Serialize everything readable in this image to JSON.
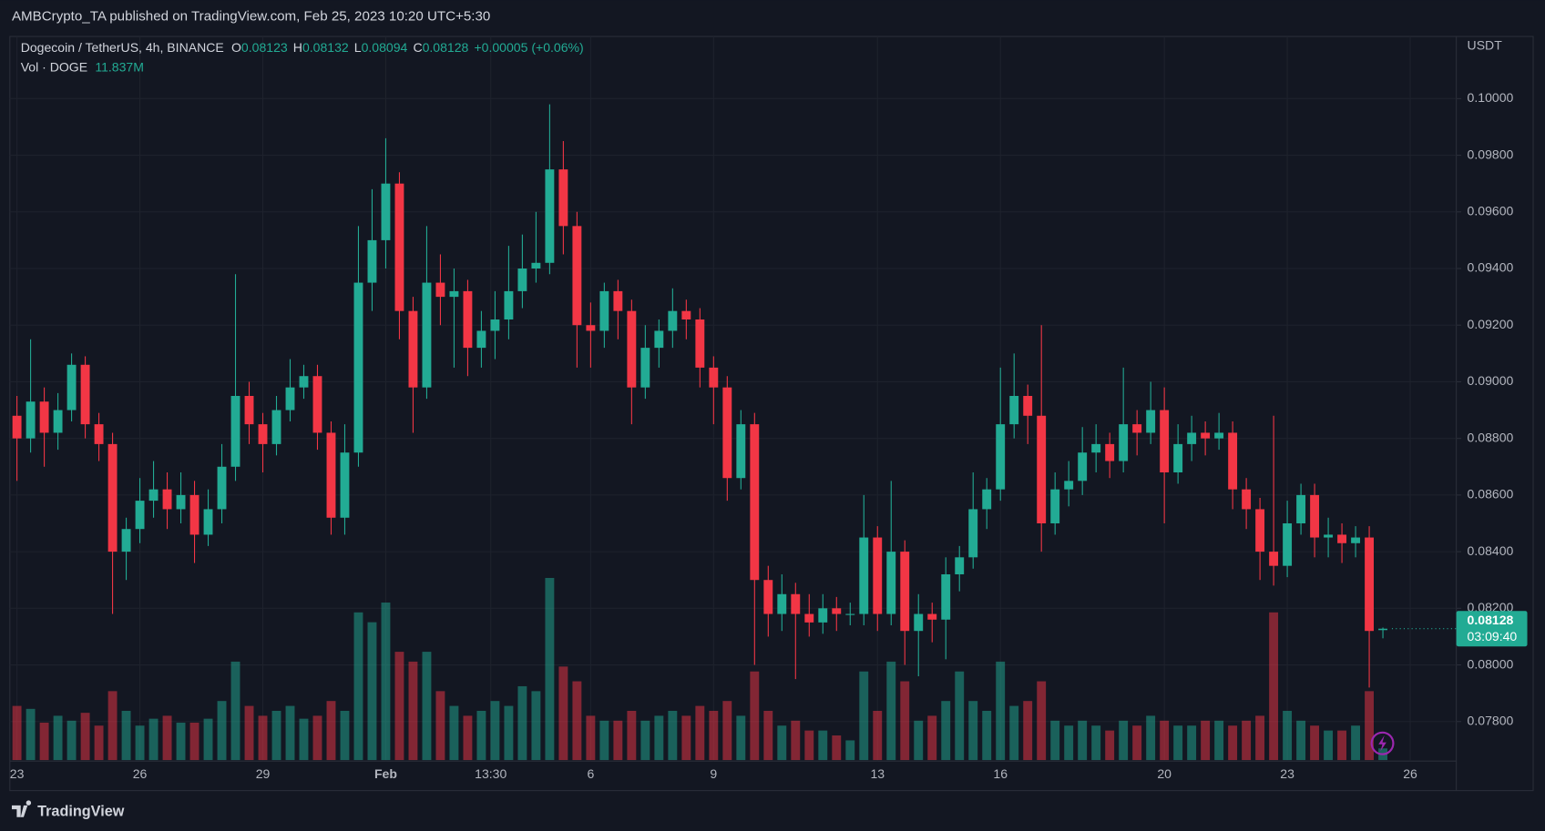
{
  "header": {
    "text": "AMBCrypto_TA published on TradingView.com, Feb 25, 2023 10:20 UTC+5:30"
  },
  "chart_data": {
    "type": "candlestick",
    "symbol": "Dogecoin / TetherUS, 4h, BINANCE",
    "ohlc_letters": [
      "O",
      "H",
      "L",
      "C"
    ],
    "change": "+0.00005 (+0.06%)",
    "volume_label": "Vol · DOGE",
    "volume_current_label": "11.837M",
    "currency": "USDT",
    "countdown": "03:09:40",
    "up_color": "#22ab94",
    "down_color": "#f23645",
    "grid": true,
    "xlim": [
      -3,
      843
    ],
    "xticks": [
      {
        "value": 0,
        "label": "23"
      },
      {
        "value": 72,
        "label": "26"
      },
      {
        "value": 144,
        "label": "29"
      },
      {
        "value": 216,
        "label": "Feb"
      },
      {
        "value": 277.5,
        "label": "13:30"
      },
      {
        "value": 336,
        "label": "6"
      },
      {
        "value": 408,
        "label": "9"
      },
      {
        "value": 504,
        "label": "13"
      },
      {
        "value": 576,
        "label": "16"
      },
      {
        "value": 672,
        "label": "20"
      },
      {
        "value": 744,
        "label": "23"
      },
      {
        "value": 816,
        "label": "26"
      }
    ],
    "ylim": [
      0.07664,
      0.10216
    ],
    "yticks": [
      {
        "value": 0.078,
        "label": "0.07800"
      },
      {
        "value": 0.08,
        "label": "0.08000"
      },
      {
        "value": 0.082,
        "label": "0.08200"
      },
      {
        "value": 0.084,
        "label": "0.08400"
      },
      {
        "value": 0.086,
        "label": "0.08600"
      },
      {
        "value": 0.088,
        "label": "0.08800"
      },
      {
        "value": 0.09,
        "label": "0.09000"
      },
      {
        "value": 0.092,
        "label": "0.09200"
      },
      {
        "value": 0.094,
        "label": "0.09400"
      },
      {
        "value": 0.096,
        "label": "0.09600"
      },
      {
        "value": 0.098,
        "label": "0.09800"
      },
      {
        "value": 0.1,
        "label": "0.10000"
      }
    ],
    "x": [
      0,
      8,
      16,
      24,
      32,
      40,
      48,
      56,
      64,
      72,
      80,
      88,
      96,
      104,
      112,
      120,
      128,
      136,
      144,
      152,
      160,
      168,
      176,
      184,
      192,
      200,
      208,
      216,
      224,
      232,
      240,
      248,
      256,
      264,
      272,
      280,
      288,
      296,
      304,
      312,
      320,
      328,
      336,
      344,
      352,
      360,
      368,
      376,
      384,
      392,
      400,
      408,
      416,
      424,
      432,
      440,
      448,
      456,
      464,
      472,
      480,
      488,
      496,
      504,
      512,
      520,
      528,
      536,
      544,
      552,
      560,
      568,
      576,
      584,
      592,
      600,
      608,
      616,
      624,
      632,
      640,
      648,
      656,
      664,
      672,
      680,
      688,
      696,
      704,
      712,
      720,
      728,
      736,
      744,
      752,
      760,
      768,
      776,
      784,
      792,
      800
    ],
    "candles": [
      [
        0.0888,
        0.0895,
        0.0865,
        0.088
      ],
      [
        0.088,
        0.0915,
        0.0875,
        0.0893
      ],
      [
        0.0893,
        0.0898,
        0.087,
        0.0882
      ],
      [
        0.0882,
        0.0896,
        0.0876,
        0.089
      ],
      [
        0.089,
        0.091,
        0.0886,
        0.0906
      ],
      [
        0.0906,
        0.0909,
        0.088,
        0.0885
      ],
      [
        0.0885,
        0.0889,
        0.0872,
        0.0878
      ],
      [
        0.0878,
        0.0882,
        0.0818,
        0.084
      ],
      [
        0.084,
        0.0852,
        0.083,
        0.0848
      ],
      [
        0.0848,
        0.0866,
        0.0843,
        0.0858
      ],
      [
        0.0858,
        0.0872,
        0.0852,
        0.0862
      ],
      [
        0.0862,
        0.0868,
        0.0848,
        0.0855
      ],
      [
        0.0855,
        0.0868,
        0.085,
        0.086
      ],
      [
        0.086,
        0.0865,
        0.0836,
        0.0846
      ],
      [
        0.0846,
        0.0862,
        0.0842,
        0.0855
      ],
      [
        0.0855,
        0.0878,
        0.085,
        0.087
      ],
      [
        0.087,
        0.0938,
        0.0865,
        0.0895
      ],
      [
        0.0895,
        0.09,
        0.0878,
        0.0885
      ],
      [
        0.0885,
        0.0889,
        0.0868,
        0.0878
      ],
      [
        0.0878,
        0.0895,
        0.0874,
        0.089
      ],
      [
        0.089,
        0.0908,
        0.0886,
        0.0898
      ],
      [
        0.0898,
        0.0906,
        0.0894,
        0.0902
      ],
      [
        0.0902,
        0.0906,
        0.0876,
        0.0882
      ],
      [
        0.0882,
        0.0886,
        0.0846,
        0.0852
      ],
      [
        0.0852,
        0.0885,
        0.0846,
        0.0875
      ],
      [
        0.0875,
        0.0955,
        0.087,
        0.0935
      ],
      [
        0.0935,
        0.0968,
        0.0925,
        0.095
      ],
      [
        0.095,
        0.0986,
        0.094,
        0.097
      ],
      [
        0.097,
        0.0974,
        0.0915,
        0.0925
      ],
      [
        0.0925,
        0.093,
        0.0882,
        0.0898
      ],
      [
        0.0898,
        0.0955,
        0.0894,
        0.0935
      ],
      [
        0.0935,
        0.0945,
        0.092,
        0.093
      ],
      [
        0.093,
        0.094,
        0.0905,
        0.0932
      ],
      [
        0.0932,
        0.0936,
        0.0902,
        0.0912
      ],
      [
        0.0912,
        0.0925,
        0.0905,
        0.0918
      ],
      [
        0.0918,
        0.0932,
        0.0908,
        0.0922
      ],
      [
        0.0922,
        0.0948,
        0.0915,
        0.0932
      ],
      [
        0.0932,
        0.0952,
        0.0926,
        0.094
      ],
      [
        0.094,
        0.096,
        0.0935,
        0.0942
      ],
      [
        0.0942,
        0.0998,
        0.0938,
        0.0975
      ],
      [
        0.0975,
        0.0985,
        0.0945,
        0.0955
      ],
      [
        0.0955,
        0.096,
        0.0905,
        0.092
      ],
      [
        0.092,
        0.0928,
        0.0905,
        0.0918
      ],
      [
        0.0918,
        0.0935,
        0.0912,
        0.0932
      ],
      [
        0.0932,
        0.0936,
        0.0915,
        0.0925
      ],
      [
        0.0925,
        0.0929,
        0.0885,
        0.0898
      ],
      [
        0.0898,
        0.092,
        0.0894,
        0.0912
      ],
      [
        0.0912,
        0.0922,
        0.0905,
        0.0918
      ],
      [
        0.0918,
        0.0933,
        0.0912,
        0.0925
      ],
      [
        0.0925,
        0.0929,
        0.0915,
        0.0922
      ],
      [
        0.0922,
        0.0926,
        0.0898,
        0.0905
      ],
      [
        0.0905,
        0.0909,
        0.0885,
        0.0898
      ],
      [
        0.0898,
        0.0902,
        0.0858,
        0.0866
      ],
      [
        0.0866,
        0.089,
        0.0862,
        0.0885
      ],
      [
        0.0885,
        0.0889,
        0.08,
        0.083
      ],
      [
        0.083,
        0.0835,
        0.081,
        0.0818
      ],
      [
        0.0818,
        0.0832,
        0.0812,
        0.0825
      ],
      [
        0.0825,
        0.0829,
        0.0795,
        0.0818
      ],
      [
        0.0818,
        0.0825,
        0.081,
        0.0815
      ],
      [
        0.0815,
        0.0825,
        0.0811,
        0.082
      ],
      [
        0.082,
        0.0824,
        0.0812,
        0.0818
      ],
      [
        0.0818,
        0.0822,
        0.0814,
        0.0818
      ],
      [
        0.0818,
        0.086,
        0.0814,
        0.0845
      ],
      [
        0.0845,
        0.0849,
        0.0812,
        0.0818
      ],
      [
        0.0818,
        0.0865,
        0.0814,
        0.084
      ],
      [
        0.084,
        0.0844,
        0.08,
        0.0812
      ],
      [
        0.0812,
        0.0825,
        0.0796,
        0.0818
      ],
      [
        0.0818,
        0.0822,
        0.0808,
        0.0816
      ],
      [
        0.0816,
        0.0838,
        0.0802,
        0.0832
      ],
      [
        0.0832,
        0.0842,
        0.0826,
        0.0838
      ],
      [
        0.0838,
        0.0868,
        0.0834,
        0.0855
      ],
      [
        0.0855,
        0.0866,
        0.0848,
        0.0862
      ],
      [
        0.0862,
        0.0905,
        0.0858,
        0.0885
      ],
      [
        0.0885,
        0.091,
        0.088,
        0.0895
      ],
      [
        0.0895,
        0.0899,
        0.0878,
        0.0888
      ],
      [
        0.0888,
        0.092,
        0.084,
        0.085
      ],
      [
        0.085,
        0.0868,
        0.0846,
        0.0862
      ],
      [
        0.0862,
        0.0872,
        0.0856,
        0.0865
      ],
      [
        0.0865,
        0.0884,
        0.086,
        0.0875
      ],
      [
        0.0875,
        0.0885,
        0.0868,
        0.0878
      ],
      [
        0.0878,
        0.0882,
        0.0866,
        0.0872
      ],
      [
        0.0872,
        0.0905,
        0.0868,
        0.0885
      ],
      [
        0.0885,
        0.089,
        0.0874,
        0.0882
      ],
      [
        0.0882,
        0.09,
        0.0878,
        0.089
      ],
      [
        0.089,
        0.0898,
        0.085,
        0.0868
      ],
      [
        0.0868,
        0.0885,
        0.0864,
        0.0878
      ],
      [
        0.0878,
        0.0888,
        0.0872,
        0.0882
      ],
      [
        0.0882,
        0.0886,
        0.0874,
        0.088
      ],
      [
        0.088,
        0.0889,
        0.0876,
        0.0882
      ],
      [
        0.0882,
        0.0886,
        0.0855,
        0.0862
      ],
      [
        0.0862,
        0.0866,
        0.0848,
        0.0855
      ],
      [
        0.0855,
        0.0859,
        0.083,
        0.084
      ],
      [
        0.084,
        0.0888,
        0.0828,
        0.0835
      ],
      [
        0.0835,
        0.0858,
        0.0831,
        0.085
      ],
      [
        0.085,
        0.0864,
        0.0846,
        0.086
      ],
      [
        0.086,
        0.0864,
        0.0838,
        0.0845
      ],
      [
        0.0845,
        0.0852,
        0.0838,
        0.0846
      ],
      [
        0.0846,
        0.085,
        0.0836,
        0.0843
      ],
      [
        0.0843,
        0.0849,
        0.0838,
        0.0845
      ],
      [
        0.0845,
        0.0849,
        0.0792,
        0.0812
      ],
      [
        0.08123,
        0.08132,
        0.08094,
        0.08128
      ]
    ],
    "volume": [
      55,
      52,
      38,
      45,
      40,
      48,
      35,
      70,
      50,
      35,
      42,
      45,
      38,
      38,
      42,
      60,
      100,
      55,
      45,
      50,
      55,
      42,
      45,
      60,
      50,
      150,
      140,
      160,
      110,
      100,
      110,
      70,
      55,
      45,
      50,
      60,
      55,
      75,
      70,
      185,
      95,
      80,
      45,
      40,
      40,
      50,
      40,
      45,
      50,
      45,
      55,
      50,
      60,
      45,
      90,
      50,
      35,
      40,
      30,
      30,
      25,
      20,
      90,
      50,
      100,
      80,
      40,
      45,
      60,
      90,
      60,
      50,
      100,
      55,
      60,
      80,
      40,
      35,
      40,
      35,
      30,
      40,
      35,
      45,
      40,
      35,
      35,
      40,
      40,
      35,
      40,
      45,
      150,
      50,
      40,
      35,
      30,
      30,
      35,
      70,
      11.837
    ]
  },
  "footer": {
    "brand": "TradingView"
  }
}
